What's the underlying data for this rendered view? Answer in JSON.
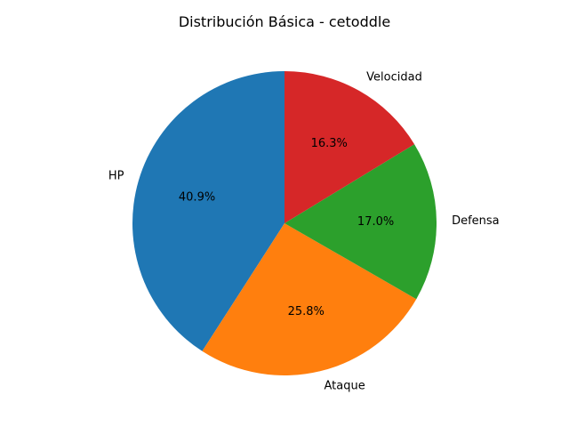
{
  "chart_data": {
    "type": "pie",
    "title": "Distribución Básica - cetoddle",
    "categories": [
      "HP",
      "Ataque",
      "Defensa",
      "Velocidad"
    ],
    "values": [
      40.9,
      25.8,
      17.0,
      16.3
    ],
    "value_labels": [
      "40.9%",
      "25.8%",
      "17.0%",
      "16.3%"
    ],
    "colors": [
      "#1f77b4",
      "#ff7f0e",
      "#2ca02c",
      "#d62728"
    ],
    "start_angle_deg": 90,
    "direction": "counterclockwise",
    "legend": "none"
  }
}
